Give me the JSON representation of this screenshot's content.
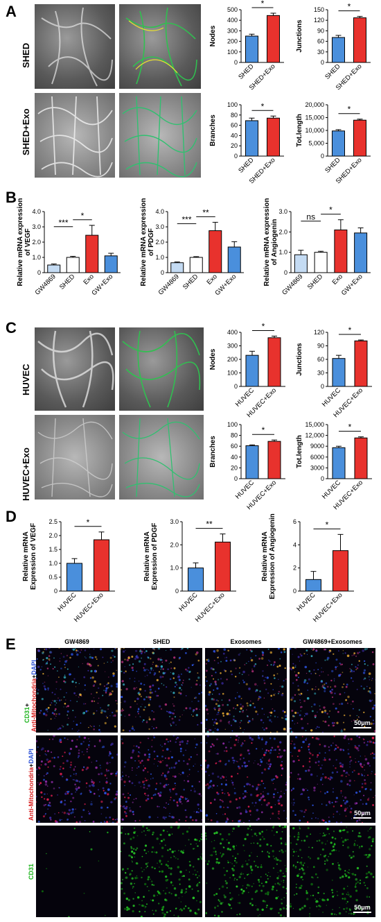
{
  "panels": {
    "A": {
      "letter": "A",
      "rows": [
        "SHED",
        "SHED+Exo"
      ]
    },
    "B": {
      "letter": "B"
    },
    "C": {
      "letter": "C",
      "rows": [
        "HUVEC",
        "HUVEC+Exo"
      ]
    },
    "D": {
      "letter": "D"
    },
    "E": {
      "letter": "E",
      "columns": [
        "GW4869",
        "SHED",
        "Exosomes",
        "GW4869+Exosomes"
      ],
      "rows": [
        {
          "parts": [
            {
              "text": "CD31",
              "color": "#1db31d"
            },
            {
              "text": "+",
              "color": "#000000"
            },
            {
              "text": "Anti-Mitochondria",
              "color": "#d81e1e"
            },
            {
              "text": "+",
              "color": "#000000"
            },
            {
              "text": "DAPI",
              "color": "#2a4fd6"
            }
          ]
        },
        {
          "parts": [
            {
              "text": "Anti-Mitochondria",
              "color": "#d81e1e"
            },
            {
              "text": "+",
              "color": "#000000"
            },
            {
              "text": "DAPI",
              "color": "#2a4fd6"
            }
          ]
        },
        {
          "parts": [
            {
              "text": "CD31",
              "color": "#1db31d"
            }
          ]
        }
      ],
      "scalebar": "50μm"
    }
  },
  "colors": {
    "blue": "#4a8fdc",
    "red": "#e8322d",
    "lightblue": "#c4dbf3",
    "white": "#ffffff"
  },
  "chart_data": [
    {
      "id": "A-nodes",
      "type": "bar",
      "ylabel": "Nodes",
      "categories": [
        "SHED",
        "SHED+Exo"
      ],
      "values": [
        250,
        445
      ],
      "errors": [
        18,
        22
      ],
      "colors": [
        "#4a8fdc",
        "#e8322d"
      ],
      "ylim": [
        0,
        500
      ],
      "yticks": [
        "0",
        "100",
        "200",
        "300",
        "400",
        "500"
      ],
      "sig": [
        {
          "from": 0,
          "to": 1,
          "label": "*"
        }
      ]
    },
    {
      "id": "A-junctions",
      "type": "bar",
      "ylabel": "Junctions",
      "categories": [
        "SHED",
        "SHED+Exo"
      ],
      "values": [
        71,
        127
      ],
      "errors": [
        6,
        4
      ],
      "colors": [
        "#4a8fdc",
        "#e8322d"
      ],
      "ylim": [
        0,
        150
      ],
      "yticks": [
        "0",
        "30",
        "60",
        "90",
        "120",
        "150"
      ],
      "sig": [
        {
          "from": 0,
          "to": 1,
          "label": "*"
        }
      ]
    },
    {
      "id": "A-branches",
      "type": "bar",
      "ylabel": "Branches",
      "categories": [
        "SHED",
        "SHED+Exo"
      ],
      "values": [
        69,
        74
      ],
      "errors": [
        5,
        4
      ],
      "colors": [
        "#4a8fdc",
        "#e8322d"
      ],
      "ylim": [
        0,
        100
      ],
      "yticks": [
        "0",
        "20",
        "40",
        "60",
        "80",
        "100"
      ],
      "sig": [
        {
          "from": 0,
          "to": 1,
          "label": "*"
        }
      ]
    },
    {
      "id": "A-totlength",
      "type": "bar",
      "ylabel": "Tot.length",
      "categories": [
        "SHED",
        "SHED+Exo"
      ],
      "values": [
        9800,
        14000
      ],
      "errors": [
        500,
        400
      ],
      "colors": [
        "#4a8fdc",
        "#e8322d"
      ],
      "ylim": [
        0,
        20000
      ],
      "yticks": [
        "0",
        "5,000",
        "10,000",
        "15,000",
        "20,000"
      ],
      "sig": [
        {
          "from": 0,
          "to": 1,
          "label": "*"
        }
      ]
    },
    {
      "id": "B-vegf",
      "type": "bar",
      "ylabel": [
        "Relative mRNA expression",
        "of VEGF"
      ],
      "categories": [
        "GW4869",
        "SHED",
        "Exo",
        "GW+Exo"
      ],
      "values": [
        0.5,
        1.0,
        2.45,
        1.1
      ],
      "errors": [
        0.07,
        0.07,
        0.65,
        0.17
      ],
      "colors": [
        "#c4dbf3",
        "#ffffff",
        "#e8322d",
        "#4a8fdc"
      ],
      "ylim": [
        0,
        4
      ],
      "yticks": [
        "0",
        "1.0",
        "2.0",
        "3.0",
        "4.0"
      ],
      "sig": [
        {
          "from": 0,
          "to": 1,
          "label": "***"
        },
        {
          "from": 1,
          "to": 2,
          "label": "*"
        }
      ]
    },
    {
      "id": "B-pdgf",
      "type": "bar",
      "ylabel": [
        "Relative mRNA expression",
        "of PDGF"
      ],
      "categories": [
        "GW4869",
        "SHED",
        "Exo",
        "GW+Exo"
      ],
      "values": [
        0.65,
        1.0,
        2.75,
        1.68
      ],
      "errors": [
        0.05,
        0.05,
        0.55,
        0.35
      ],
      "colors": [
        "#c4dbf3",
        "#ffffff",
        "#e8322d",
        "#4a8fdc"
      ],
      "ylim": [
        0,
        4
      ],
      "yticks": [
        "0",
        "1.0",
        "2.0",
        "3.0",
        "4.0"
      ],
      "sig": [
        {
          "from": 0,
          "to": 1,
          "label": "***"
        },
        {
          "from": 1,
          "to": 2,
          "label": "**"
        }
      ]
    },
    {
      "id": "B-angiogenin",
      "type": "bar",
      "ylabel": [
        "Relative mRNA expression",
        "of Angiogenin"
      ],
      "categories": [
        "GW4869",
        "SHED",
        "Exo",
        "GW+Exo"
      ],
      "values": [
        0.88,
        1.0,
        2.1,
        1.95
      ],
      "errors": [
        0.22,
        0.05,
        0.5,
        0.25
      ],
      "colors": [
        "#c4dbf3",
        "#ffffff",
        "#e8322d",
        "#4a8fdc"
      ],
      "ylim": [
        0,
        3
      ],
      "yticks": [
        "0",
        "1.0",
        "2.0",
        "3.0"
      ],
      "sig": [
        {
          "from": 0,
          "to": 1,
          "label": "ns"
        },
        {
          "from": 1,
          "to": 2,
          "label": "*"
        }
      ]
    },
    {
      "id": "C-nodes",
      "type": "bar",
      "ylabel": "Nodes",
      "categories": [
        "HUVEC",
        "HUVEC+Exo"
      ],
      "values": [
        230,
        360
      ],
      "errors": [
        30,
        12
      ],
      "colors": [
        "#4a8fdc",
        "#e8322d"
      ],
      "ylim": [
        0,
        400
      ],
      "yticks": [
        "0",
        "100",
        "200",
        "300",
        "400"
      ],
      "sig": [
        {
          "from": 0,
          "to": 1,
          "label": "*"
        }
      ]
    },
    {
      "id": "C-junctions",
      "type": "bar",
      "ylabel": "Junctions",
      "categories": [
        "HUVEC",
        "HUVEC+Exo"
      ],
      "values": [
        62,
        101
      ],
      "errors": [
        7,
        2
      ],
      "colors": [
        "#4a8fdc",
        "#e8322d"
      ],
      "ylim": [
        0,
        120
      ],
      "yticks": [
        "0",
        "30",
        "60",
        "90",
        "120"
      ],
      "sig": [
        {
          "from": 0,
          "to": 1,
          "label": "*"
        }
      ]
    },
    {
      "id": "C-branches",
      "type": "bar",
      "ylabel": "Branches",
      "categories": [
        "HUVEC",
        "HUVEC+Exo"
      ],
      "values": [
        61,
        69
      ],
      "errors": [
        1.5,
        2.5
      ],
      "colors": [
        "#4a8fdc",
        "#e8322d"
      ],
      "ylim": [
        0,
        100
      ],
      "yticks": [
        "0",
        "20",
        "40",
        "60",
        "80",
        "100"
      ],
      "sig": [
        {
          "from": 0,
          "to": 1,
          "label": "*"
        }
      ]
    },
    {
      "id": "C-totlength",
      "type": "bar",
      "ylabel": "Tot.length",
      "categories": [
        "HUVEC",
        "HUVEC+Exo"
      ],
      "values": [
        8600,
        11300
      ],
      "errors": [
        400,
        300
      ],
      "colors": [
        "#4a8fdc",
        "#e8322d"
      ],
      "ylim": [
        0,
        15000
      ],
      "yticks": [
        "0",
        "3000",
        "6000",
        "9000",
        "12,000",
        "15,000"
      ],
      "sig": [
        {
          "from": 0,
          "to": 1,
          "label": "*"
        }
      ]
    },
    {
      "id": "D-vegf",
      "type": "bar",
      "ylabel": [
        "Relative mRNA",
        "Expression of VEGF"
      ],
      "categories": [
        "HUVEC",
        "HUVEC+Exo"
      ],
      "values": [
        1.0,
        1.85
      ],
      "errors": [
        0.17,
        0.28
      ],
      "colors": [
        "#4a8fdc",
        "#e8322d"
      ],
      "ylim": [
        0,
        2.5
      ],
      "yticks": [
        "0",
        "0.5",
        "1.0",
        "1.5",
        "2.0",
        "2.5"
      ],
      "sig": [
        {
          "from": 0,
          "to": 1,
          "label": "*"
        }
      ]
    },
    {
      "id": "D-pdgf",
      "type": "bar",
      "ylabel": [
        "Relative mRNA",
        "Expression of PDGF"
      ],
      "categories": [
        "HUVEC",
        "HUVEC+Exo"
      ],
      "values": [
        1.0,
        2.12
      ],
      "errors": [
        0.22,
        0.35
      ],
      "colors": [
        "#4a8fdc",
        "#e8322d"
      ],
      "ylim": [
        0,
        3
      ],
      "yticks": [
        "0",
        "1.0",
        "2.0",
        "3.0"
      ],
      "sig": [
        {
          "from": 0,
          "to": 1,
          "label": "**"
        }
      ]
    },
    {
      "id": "D-angiogenin",
      "type": "bar",
      "ylabel": [
        "Relative mRNA",
        "Expression of Angiogenin"
      ],
      "categories": [
        "HUVEC",
        "HUVEC+Exo"
      ],
      "values": [
        1.0,
        3.5
      ],
      "errors": [
        0.7,
        1.4
      ],
      "colors": [
        "#4a8fdc",
        "#e8322d"
      ],
      "ylim": [
        0,
        6
      ],
      "yticks": [
        "0",
        "2",
        "4",
        "6"
      ],
      "sig": [
        {
          "from": 0,
          "to": 1,
          "label": "*"
        }
      ]
    }
  ]
}
